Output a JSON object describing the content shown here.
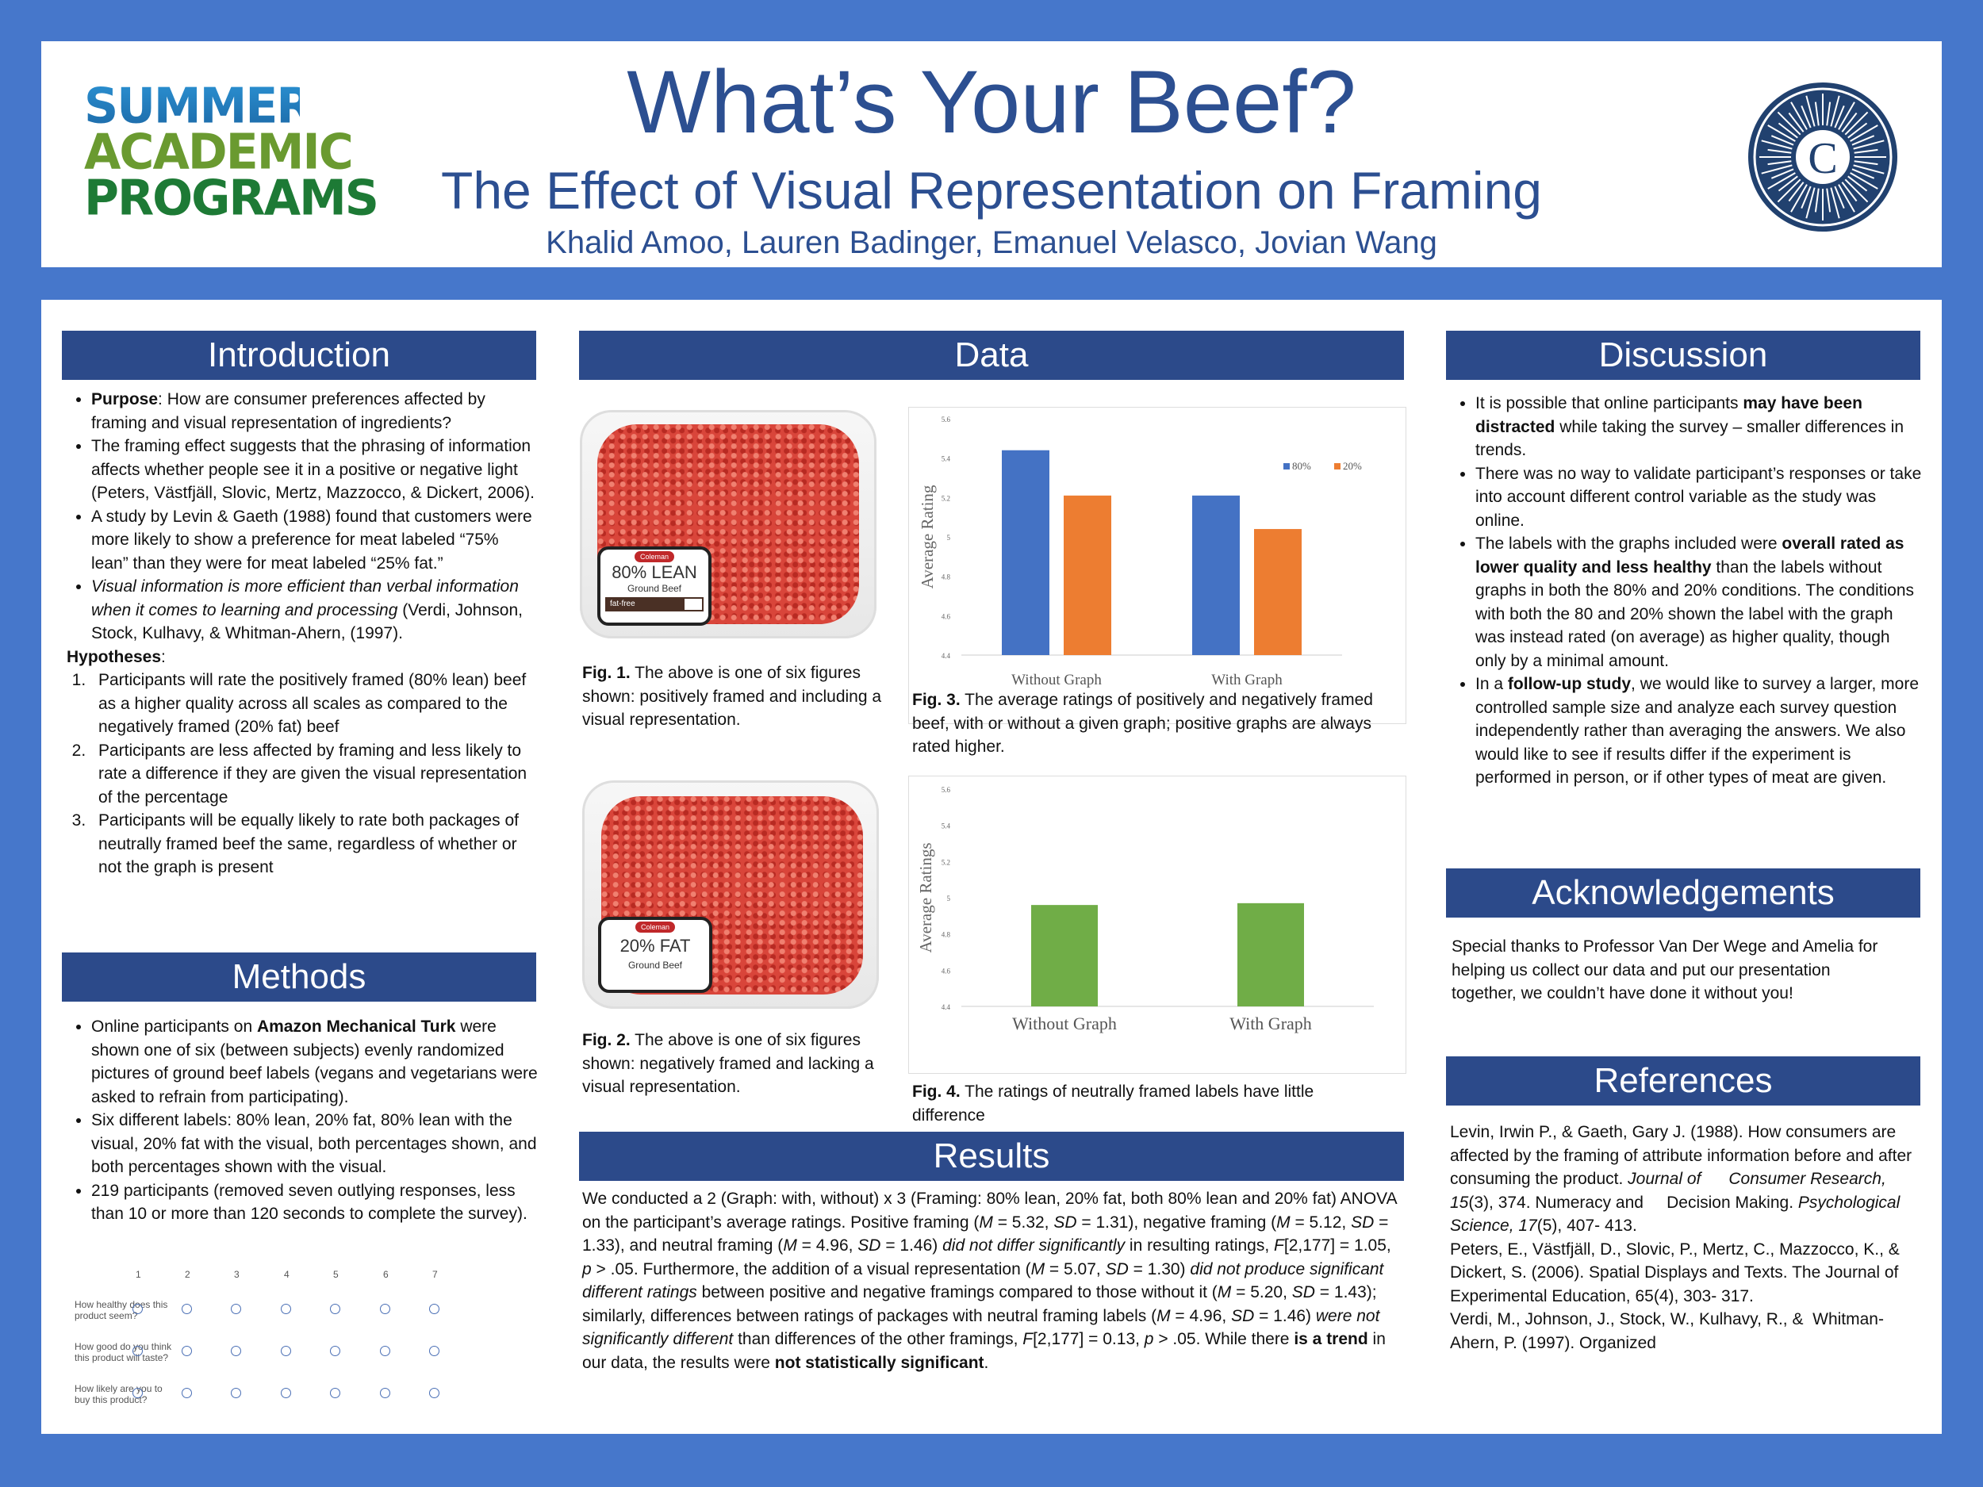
{
  "header": {
    "title": "What’s Your Beef?",
    "subtitle": "The Effect of Visual Representation on Framing",
    "authors": "Khalid Amoo, Lauren Badinger, Emanuel Velasco, Jovian Wang",
    "logo_left_lines": [
      "SUMMER",
      "ACADEMIC",
      "PROGRAMS"
    ],
    "logo_right_letter": "C",
    "colors": {
      "brand_blue": "#2c4a8a",
      "background_blue": "#4677cb",
      "title_blue": "#2c4f91"
    }
  },
  "introduction": {
    "heading": "Introduction",
    "bullets": [
      {
        "bold": "Purpose",
        "text": ": How are consumer preferences affected by framing and visual representation of ingredients?"
      },
      {
        "text": "The framing effect suggests that the phrasing of information affects whether people see it in a positive or negative light (Peters, Västfjäll, Slovic, Mertz, Mazzocco, & Dickert, 2006)."
      },
      {
        "text": "A study by Levin & Gaeth (1988) found that customers were more likely to show a preference for meat labeled “75% lean” than they were for meat labeled “25% fat.”"
      },
      {
        "italic": "Visual information is more efficient than verbal information when it comes to learning and processing",
        "text": " (Verdi, Johnson, Stock, Kulhavy, & Whitman-Ahern, (1997)."
      }
    ],
    "hypotheses_label": "Hypotheses",
    "hypotheses": [
      "Participants will rate the positively framed (80% lean) beef as a higher quality across all scales as compared to the negatively framed (20% fat) beef",
      "Participants are less affected by framing and less likely to rate a difference if they are given the visual representation of the percentage",
      "Participants will be equally likely to rate both packages of neutrally framed beef the same, regardless of whether or not the graph is present"
    ]
  },
  "methods": {
    "heading": "Methods",
    "bullets": [
      {
        "pre": "Online participants on ",
        "bold": "Amazon Mechanical Turk",
        "text": " were shown one of six (between subjects) evenly randomized pictures of ground beef labels (vegans and vegetarians were asked to refrain from participating)."
      },
      {
        "text": "Six different labels: 80% lean, 20% fat, 80% lean with the visual, 20% fat with the visual, both percentages shown, and both percentages shown with the visual."
      },
      {
        "text": "219 participants (removed seven outlying responses, less than 10 or more than 120 seconds to complete the survey)."
      }
    ],
    "scale": [
      "1",
      "2",
      "3",
      "4",
      "5",
      "6",
      "7"
    ],
    "questions": [
      "How healthy does this product seem?",
      "How good do you think this product will taste?",
      "How likely are you to buy this product?"
    ]
  },
  "data": {
    "heading": "Data",
    "fig1": {
      "label_big": "80% LEAN",
      "label_small": "Ground Beef",
      "label_bar": "fat-free",
      "brand": "Coleman",
      "caption_bold": "Fig. 1.",
      "caption": " The above is one of six figures shown: positively framed and including a visual representation."
    },
    "fig2": {
      "label_big": "20% FAT",
      "label_small": "Ground Beef",
      "brand": "Coleman",
      "caption_bold": "Fig. 2.",
      "caption": " The above is one of six figures shown: negatively framed and lacking a visual representation."
    },
    "fig3": {
      "caption_bold": "Fig. 3.",
      "caption": " The average ratings of positively and negatively framed beef, with or without a given graph; positive graphs are always rated higher."
    },
    "fig4": {
      "caption_bold": "Fig. 4.",
      "caption": " The ratings of neutrally framed labels have little difference"
    }
  },
  "chart_data": [
    {
      "type": "bar",
      "categories": [
        "Without Graph",
        "With Graph"
      ],
      "series": [
        {
          "name": "80%",
          "values": [
            5.44,
            5.21
          ],
          "color": "#4472c4"
        },
        {
          "name": "20%",
          "values": [
            5.21,
            5.04
          ],
          "color": "#ed7d31"
        }
      ],
      "ylabel": "Average Rating",
      "ylim": [
        4.4,
        5.6
      ],
      "yticks": [
        "4.4",
        "4.6",
        "4.8",
        "5",
        "5.2",
        "5.4",
        "5.6"
      ],
      "legend": "top-right",
      "grid": false
    },
    {
      "type": "bar",
      "categories": [
        "Without  Graph",
        "With Graph"
      ],
      "series": [
        {
          "values": [
            4.96,
            4.97
          ],
          "color": "#70ad47"
        }
      ],
      "ylabel": "Average Ratings",
      "ylim": [
        4.4,
        5.6
      ],
      "yticks": [
        "4.4",
        "4.6",
        "4.8",
        "5",
        "5.2",
        "5.4",
        "5.6"
      ],
      "grid": false
    }
  ],
  "results": {
    "heading": "Results"
  },
  "discussion": {
    "heading": "Discussion",
    "bullets": [
      {
        "pre": "It is possible that online participants ",
        "bold": "may have been distracted",
        "text": " while taking the survey – smaller differences in trends."
      },
      {
        "text": "There was no way to validate participant’s responses or take into account different control variable as the study was online."
      },
      {
        "pre": "The labels with the graphs included were ",
        "bold": "overall rated as lower quality and less healthy",
        "text": " than the labels without graphs in both the 80% and 20% conditions. The conditions with both the 80 and 20% shown the label with the graph was instead rated (on average) as higher quality, though only by a minimal amount."
      },
      {
        "pre": "In a ",
        "bold": "follow-up study",
        "text": ", we would like to survey a larger, more controlled sample size and analyze each survey question independently rather than averaging the answers. We also would like to see if results differ if the experiment is performed in person, or if other types of meat are given."
      }
    ]
  },
  "acknowledgements": {
    "heading": "Acknowledgements",
    "text": "Special thanks to Professor Van Der Wege and Amelia for helping us collect our data and put our presentation together, we couldn’t have done it without you!"
  },
  "references": {
    "heading": "References"
  }
}
